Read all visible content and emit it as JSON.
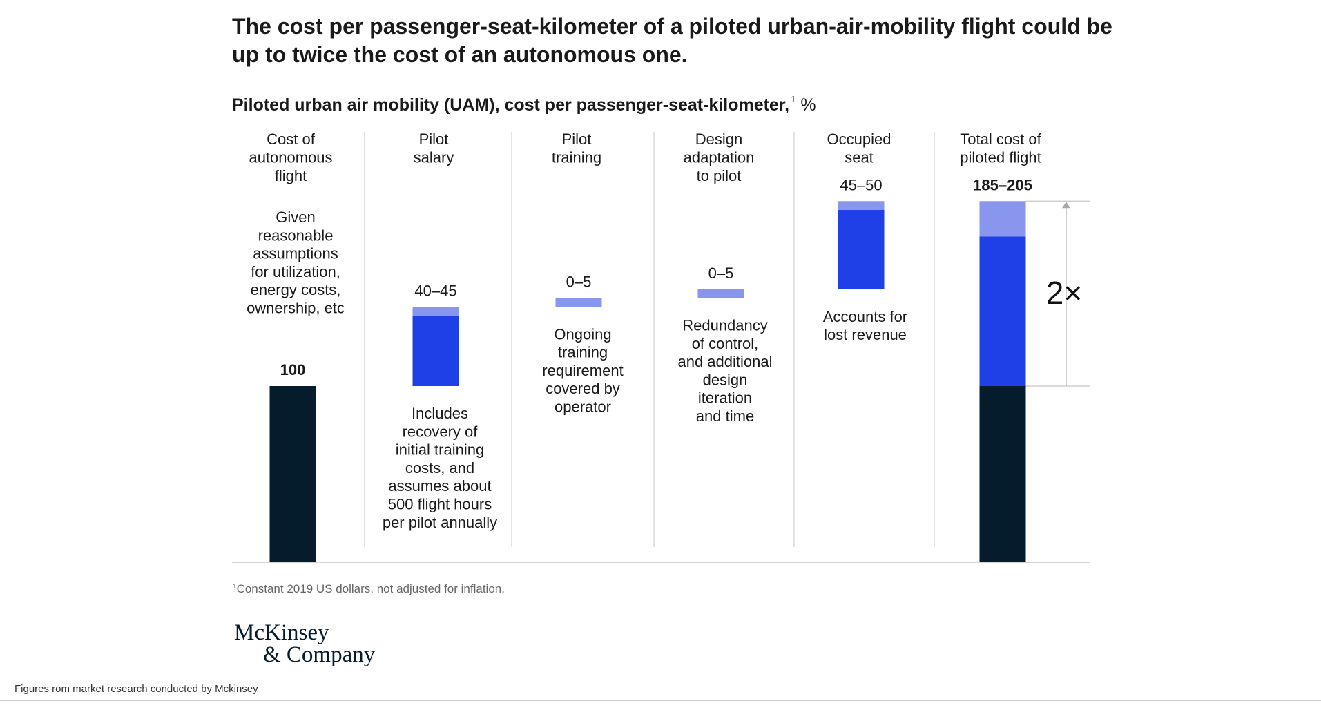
{
  "title": "The cost per passenger-seat-kilometer of a piloted urban-air-mobility flight could be up to twice the cost of an autonomous one.",
  "subtitle": {
    "text": "Piloted urban air mobility (UAM), cost per passenger-seat-kilometer,",
    "footnote_marker": "1",
    "unit": "%"
  },
  "footnote": {
    "marker": "1",
    "text": "Constant 2019 US dollars, not adjusted for inflation."
  },
  "logo": {
    "line1": "McKinsey",
    "line2": "& Company"
  },
  "source_note": "Figures rom market research conducted by Mckinsey",
  "colors": {
    "dark": "#051c2c",
    "blue": "#1f40e6",
    "light_blue": "#8996ee",
    "divider": "#d0d0d0",
    "text": "#1a1a1a"
  },
  "chart_data": {
    "type": "bar",
    "subtype": "waterfall",
    "ylim": [
      0,
      205
    ],
    "categories": [
      {
        "label": [
          "Cost of",
          "autonomous",
          "flight"
        ],
        "value_label": "100",
        "bold": true,
        "low": 100,
        "high": 100,
        "base": 0,
        "note": [
          "Given",
          "reasonable",
          "assumptions",
          "for utilization,",
          "energy costs,",
          "ownership, etc"
        ],
        "note_position": "above"
      },
      {
        "label": [
          "Pilot",
          "salary"
        ],
        "value_label": "40–45",
        "bold": false,
        "low": 40,
        "high": 45,
        "base": 100,
        "note": [
          "Includes",
          "recovery of",
          "initial training",
          "costs, and",
          "assumes about",
          "500 flight hours",
          "per pilot annually"
        ],
        "note_position": "below"
      },
      {
        "label": [
          "Pilot",
          "training"
        ],
        "value_label": "0–5",
        "bold": false,
        "low": 0,
        "high": 5,
        "base": 145,
        "note": [
          "Ongoing",
          "training",
          "requirement",
          "covered by",
          "operator"
        ],
        "note_position": "below"
      },
      {
        "label": [
          "Design",
          "adaptation",
          "to pilot"
        ],
        "value_label": "0–5",
        "bold": false,
        "low": 0,
        "high": 5,
        "base": 150,
        "note": [
          "Redundancy",
          "of control,",
          "and additional",
          "design",
          "iteration",
          "and time"
        ],
        "note_position": "below"
      },
      {
        "label": [
          "Occupied",
          "seat"
        ],
        "value_label": "45–50",
        "bold": false,
        "low": 45,
        "high": 50,
        "base": 155,
        "note": [
          "Accounts for",
          "lost revenue"
        ],
        "note_position": "below"
      },
      {
        "label": [
          "Total cost of",
          "piloted flight"
        ],
        "value_label": "185–205",
        "bold": true,
        "stack": [
          {
            "value": 100,
            "color": "dark"
          },
          {
            "value": 85,
            "color": "blue"
          },
          {
            "value": 20,
            "color": "light_blue"
          }
        ],
        "note": [],
        "note_position": "none"
      }
    ],
    "annotation": {
      "text": "2×",
      "from": 100,
      "to": 205
    }
  }
}
